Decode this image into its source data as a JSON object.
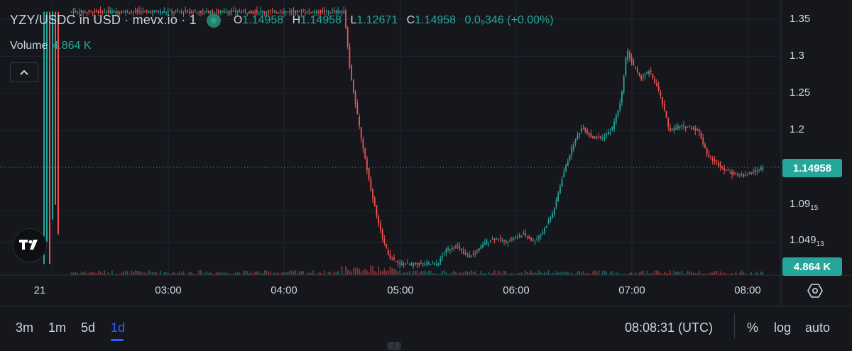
{
  "header": {
    "title": "YZY/USDC in USD · mevx.io · 1",
    "live_icon": "live-status-icon",
    "ohlc": {
      "o_label": "O",
      "o_value": "1.14958",
      "h_label": "H",
      "h_value": "1.14958",
      "l_label": "L",
      "l_value": "1.12671",
      "c_label": "C",
      "c_value": "1.14958",
      "change": "0.0₉346 (+0.00%)"
    },
    "volume_label": "Volume",
    "volume_value": "4.864 K",
    "collapse_icon": "chevron-up-icon"
  },
  "logo": "tradingview-logo",
  "price_axis": {
    "labels": [
      {
        "main": "1.35",
        "sub": ""
      },
      {
        "main": "1.3",
        "sub": ""
      },
      {
        "main": "1.25",
        "sub": ""
      },
      {
        "main": "1.2",
        "sub": ""
      },
      {
        "main": "1.09",
        "sub": "15"
      },
      {
        "main": "1.049",
        "sub": "13"
      }
    ],
    "current_price": "1.14958",
    "current_volume": "4.864 K"
  },
  "time_axis": {
    "labels": [
      "21",
      "03:00",
      "04:00",
      "05:00",
      "06:00",
      "07:00",
      "08:00"
    ],
    "settings_icon": "settings-hexagon-icon"
  },
  "bottom_bar": {
    "ranges": [
      "3m",
      "1m",
      "5d",
      "1d"
    ],
    "active_range": "1d",
    "clock": "08:08:31 (UTC)",
    "percent_label": "%",
    "log_label": "log",
    "auto_label": "auto",
    "drag_icon": "grip-dots-icon"
  },
  "colors": {
    "up": "#26a69a",
    "down": "#ef5350",
    "background": "#15171d",
    "grid": "#22252d",
    "accent": "#2962ff"
  },
  "chart_data": {
    "type": "candlestick",
    "symbol": "YZY/USDC",
    "interval": "1",
    "ylim": [
      1.02,
      1.36
    ],
    "y_ticks": [
      1.35,
      1.3,
      1.25,
      1.2,
      1.0915,
      1.04913
    ],
    "x_ticks": [
      "21",
      "03:00",
      "04:00",
      "05:00",
      "06:00",
      "07:00",
      "08:00"
    ],
    "last_price": 1.14958,
    "last_volume": "4.864 K",
    "grid": true,
    "series": [
      {
        "name": "price",
        "points": [
          [
            "02:10",
            1.36
          ],
          [
            "02:25",
            1.36
          ],
          [
            "02:40",
            1.36
          ],
          [
            "03:00",
            1.36
          ],
          [
            "03:30",
            1.36
          ],
          [
            "04:00",
            1.36
          ],
          [
            "04:20",
            1.36
          ],
          [
            "04:32",
            1.36
          ],
          [
            "04:35",
            1.28
          ],
          [
            "04:40",
            1.2
          ],
          [
            "04:45",
            1.13
          ],
          [
            "04:50",
            1.07
          ],
          [
            "04:55",
            1.03
          ],
          [
            "05:00",
            1.02
          ],
          [
            "05:15",
            1.02
          ],
          [
            "05:20",
            1.02
          ],
          [
            "05:25",
            1.04
          ],
          [
            "05:30",
            1.045
          ],
          [
            "05:35",
            1.03
          ],
          [
            "05:40",
            1.035
          ],
          [
            "05:45",
            1.05
          ],
          [
            "05:50",
            1.055
          ],
          [
            "05:55",
            1.05
          ],
          [
            "06:00",
            1.055
          ],
          [
            "06:05",
            1.06
          ],
          [
            "06:10",
            1.05
          ],
          [
            "06:15",
            1.065
          ],
          [
            "06:20",
            1.09
          ],
          [
            "06:25",
            1.14
          ],
          [
            "06:30",
            1.18
          ],
          [
            "06:35",
            1.205
          ],
          [
            "06:40",
            1.19
          ],
          [
            "06:45",
            1.19
          ],
          [
            "06:50",
            1.2
          ],
          [
            "06:55",
            1.24
          ],
          [
            "06:58",
            1.31
          ],
          [
            "07:00",
            1.295
          ],
          [
            "07:05",
            1.27
          ],
          [
            "07:10",
            1.28
          ],
          [
            "07:15",
            1.25
          ],
          [
            "07:20",
            1.2
          ],
          [
            "07:25",
            1.205
          ],
          [
            "07:30",
            1.205
          ],
          [
            "07:35",
            1.2
          ],
          [
            "07:40",
            1.165
          ],
          [
            "07:45",
            1.155
          ],
          [
            "07:50",
            1.145
          ],
          [
            "07:55",
            1.14
          ],
          [
            "08:00",
            1.14
          ],
          [
            "08:08",
            1.14958
          ]
        ]
      }
    ]
  }
}
